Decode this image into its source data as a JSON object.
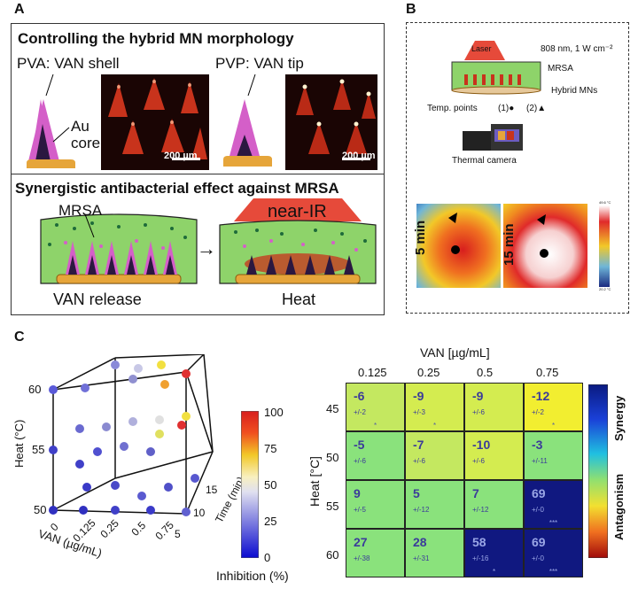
{
  "panelA": {
    "letter": "A",
    "title1": "Controlling the hybrid MN morphology",
    "pva_label": "PVA: VAN shell",
    "pvp_label": "PVP: VAN tip",
    "core_label_1": "Au",
    "core_label_2": "core",
    "scalebar1": "200 µm",
    "scalebar2": "200 µm",
    "title2": "Synergistic antibacterial effect against MRSA",
    "mrsa_label": "MRSA",
    "nir_label": "near-IR",
    "van_release": "VAN release",
    "heat": "Heat",
    "arrow": "→"
  },
  "panelB": {
    "letter": "B",
    "laser": "Laser",
    "laser_spec": "808 nm, 1 W cm⁻²",
    "mrsa": "MRSA",
    "hybrid": "Hybrid MNs",
    "temp_points": "Temp. points",
    "pt1": "(1)●",
    "pt2": "(2)▲",
    "camera": "Thermal camera",
    "t5": "5 min",
    "t15": "15 min",
    "scale_top": "49.6 °C",
    "scale_bottom": "20.2 °C"
  },
  "panelC": {
    "letter": "C",
    "cube": {
      "ylabel": "Heat (°C)",
      "xlabel": "VAN (µg/mL)",
      "zlabel": "Time (min)",
      "heat_ticks": [
        "60",
        "55",
        "50"
      ],
      "van_ticks": [
        "0",
        "0.125",
        "0.25",
        "0.5",
        "0.75"
      ],
      "time_ticks": [
        "5",
        "10",
        "15"
      ]
    },
    "colorbar": {
      "ticks": [
        "100",
        "75",
        "50",
        "25",
        "0"
      ],
      "label": "Inhibition (%)"
    },
    "heatmap": {
      "xtitle": "VAN [µg/mL]",
      "xticks": [
        "0.125",
        "0.25",
        "0.5",
        "0.75"
      ],
      "ytitle": "Heat [°C]",
      "yticks": [
        "45",
        "50",
        "55",
        "60"
      ],
      "synergy": "Synergy",
      "antagonism": "Antagonism"
    }
  },
  "chart_data": {
    "type": "heatmap",
    "title": "",
    "xlabel": "VAN [µg/mL]",
    "ylabel": "Heat [°C]",
    "x": [
      "0.125",
      "0.25",
      "0.5",
      "0.75"
    ],
    "y": [
      "45",
      "50",
      "55",
      "60"
    ],
    "values": [
      [
        -6,
        -9,
        -9,
        -12
      ],
      [
        -5,
        -7,
        -10,
        -3
      ],
      [
        9,
        5,
        7,
        69
      ],
      [
        27,
        28,
        58,
        69
      ]
    ],
    "errors": [
      "+/-2",
      "+/-3",
      "+/-6",
      "+/-2",
      "+/-6",
      "+/-6",
      "+/-6",
      "+/-11",
      "+/-5",
      "+/-12",
      "+/-12",
      "+/-0",
      "+/-38",
      "+/-31",
      "+/-16",
      "+/-0"
    ],
    "significance": [
      "*",
      "*",
      "",
      "*",
      "",
      "",
      "",
      "",
      "",
      "",
      "",
      "***",
      "",
      "",
      "*",
      "***"
    ],
    "colorbar_labels": [
      "Synergy",
      "Antagonism"
    ]
  }
}
